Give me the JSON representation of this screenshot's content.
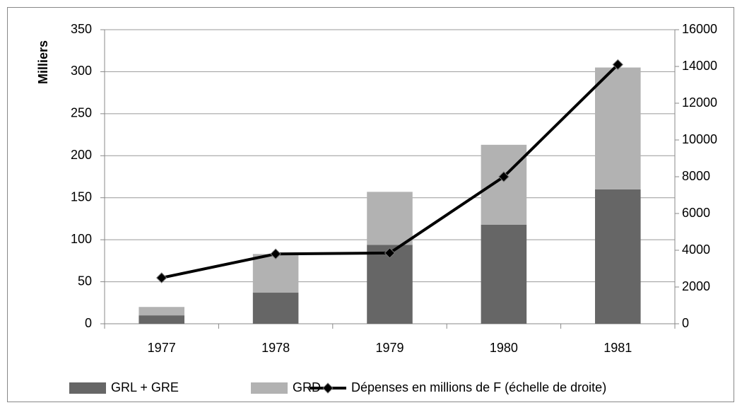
{
  "chart_data": {
    "type": "bar",
    "stacked": true,
    "y_label": "Milliers",
    "categories": [
      "1977",
      "1978",
      "1979",
      "1980",
      "1981"
    ],
    "series": [
      {
        "name": "GRL + GRE",
        "type": "bar",
        "color": "#666666",
        "values": [
          10,
          37,
          94,
          118,
          160
        ]
      },
      {
        "name": "GRD",
        "type": "bar",
        "color": "#b2b2b2",
        "values": [
          10,
          46,
          63,
          95,
          145
        ]
      },
      {
        "name": "Dépenses en millions de F (échelle de droite)",
        "type": "line",
        "axis": "y2",
        "color": "#000000",
        "values": [
          2500,
          3800,
          3850,
          8000,
          14100
        ]
      }
    ],
    "ylim": [
      0,
      350
    ],
    "yticks": [
      0,
      50,
      100,
      150,
      200,
      250,
      300,
      350
    ],
    "y2lim": [
      0,
      16000
    ],
    "y2ticks": [
      0,
      2000,
      4000,
      6000,
      8000,
      10000,
      12000,
      14000,
      16000
    ],
    "grid": true,
    "legend": "bottom"
  }
}
